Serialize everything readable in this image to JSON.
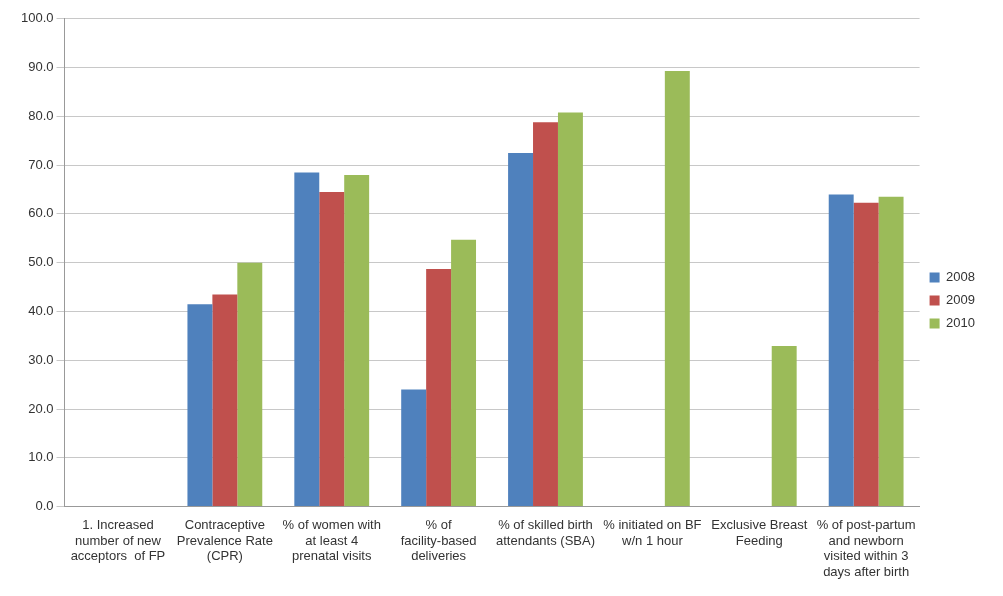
{
  "chart_data": {
    "type": "bar",
    "categories": [
      "1. Increased number of new acceptors  of FP",
      "Contraceptive Prevalence Rate (CPR)",
      "% of women with at least 4 prenatal visits",
      "% of facility-based deliveries",
      "% of skilled birth attendants (SBA)",
      "% initiated on BF w/n 1 hour",
      "Exclusive Breast Feeding",
      "% of post-partum and newborn visited within 3 days after birth"
    ],
    "series": [
      {
        "name": "2008",
        "color": "#4f81bd",
        "values": [
          null,
          41.5,
          68.5,
          24.0,
          72.5,
          null,
          null,
          64.0
        ]
      },
      {
        "name": "2009",
        "color": "#c0504d",
        "values": [
          null,
          43.5,
          64.5,
          48.7,
          78.8,
          null,
          null,
          62.3
        ]
      },
      {
        "name": "2010",
        "color": "#9bbb59",
        "values": [
          null,
          50.0,
          68.0,
          54.7,
          80.8,
          89.3,
          32.9,
          63.5
        ]
      }
    ],
    "ylim": [
      0,
      100
    ],
    "yticks": [
      {
        "value": 0,
        "label": "0.0"
      },
      {
        "value": 10,
        "label": "10.0"
      },
      {
        "value": 20,
        "label": "20.0"
      },
      {
        "value": 30,
        "label": "30.0"
      },
      {
        "value": 40,
        "label": "40.0"
      },
      {
        "value": 50,
        "label": "50.0"
      },
      {
        "value": 60,
        "label": "60.0"
      },
      {
        "value": 70,
        "label": "70.0"
      },
      {
        "value": 80,
        "label": "80.0"
      },
      {
        "value": 90,
        "label": "90.0"
      },
      {
        "value": 100,
        "label": "100.0"
      }
    ],
    "grid": "y",
    "legend": "right"
  }
}
